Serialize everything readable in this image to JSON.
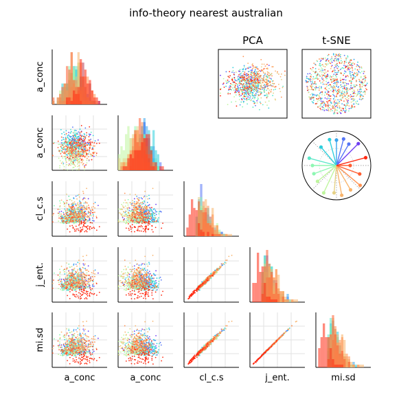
{
  "chart_data": {
    "type": "scatter",
    "title": "info-theory nearest australian",
    "variables": [
      "a_conc",
      "a_conc",
      "cl_c.s",
      "j_ent.",
      "mi.sd"
    ],
    "embedding_titles": [
      "PCA",
      "t-SNE"
    ],
    "grid": true,
    "classes": 12,
    "palette": [
      "#ff2a12",
      "#ff5e32",
      "#ff9252",
      "#f8b46c",
      "#e6d287",
      "#bff59e",
      "#8ef7b3",
      "#5de8c8",
      "#2ecfdc",
      "#38a5ee",
      "#5576f6",
      "#6e3df2"
    ],
    "class_order": [
      11,
      10,
      9,
      8,
      7,
      6,
      5,
      4,
      3,
      2,
      1,
      0
    ],
    "class_means": {
      "a_conc_1": [
        0.55,
        0.3,
        0.58,
        0.48,
        0.42,
        0.38,
        0.36,
        0.4,
        0.4,
        0.42,
        0.5,
        0.45
      ],
      "a_conc_2": [
        0.45,
        0.4,
        0.35,
        0.38,
        0.28,
        0.25,
        0.35,
        0.45,
        0.5,
        0.48,
        0.5,
        0.45
      ],
      "cl_c_s": [
        0.12,
        0.3,
        0.38,
        0.4,
        0.3,
        0.28,
        0.3,
        0.28,
        0.3,
        0.3,
        0.32,
        0.32
      ],
      "pca_x": [
        -0.6,
        0.1,
        0.3,
        0.4,
        0.2,
        -0.3,
        -0.2,
        0.0,
        -0.1,
        0.0,
        -0.1,
        -0.2
      ],
      "pca_y": [
        0.1,
        -0.1,
        -0.2,
        -0.3,
        0.1,
        0.3,
        0.2,
        0.4,
        0.1,
        0.0,
        -0.1,
        0.0
      ]
    },
    "polar_markers": {
      "angle_deg": [
        -45,
        -60,
        -75,
        -90,
        -105,
        -130,
        -165,
        180,
        160,
        140,
        115,
        95,
        80,
        60,
        40,
        20,
        0,
        -15
      ],
      "radius": [
        0.9,
        0.72,
        0.8,
        0.74,
        0.78,
        0.7,
        0.82,
        0.7,
        0.7,
        0.72,
        0.88,
        0.8,
        0.88,
        0.82,
        0.9,
        0.72,
        0.4,
        0.88
      ]
    }
  }
}
